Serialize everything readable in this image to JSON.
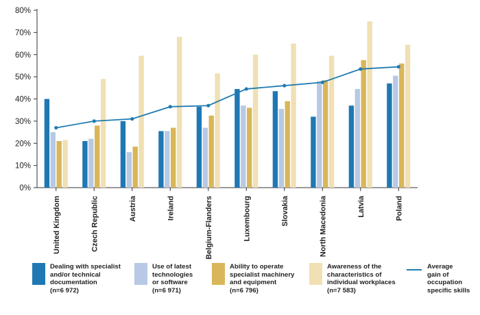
{
  "chart_data": {
    "type": "bar",
    "categories": [
      "United Kingdom",
      "Czech Republic",
      "Austria",
      "Ireland",
      "Belgium-Flanders",
      "Luxembourg",
      "Slovakia",
      "North Macedonia",
      "Latvia",
      "Poland"
    ],
    "ylim": [
      0,
      80
    ],
    "yticks": [
      "0%",
      "10%",
      "20%",
      "30%",
      "40%",
      "50%",
      "60%",
      "70%",
      "80%"
    ],
    "grid": false,
    "legend_position": "bottom",
    "series": [
      {
        "name": "Dealing with specialist\nand/or technical\ndocumentation\n(n=6 972)",
        "color": "#1f78b4",
        "values": [
          40,
          21,
          30,
          25.5,
          36.5,
          44.5,
          43.5,
          32,
          37,
          47
        ]
      },
      {
        "name": "Use of latest\ntechnologies\nor software\n(n=6 971)",
        "color": "#b7c9e4",
        "values": [
          25,
          22,
          16,
          25.5,
          27,
          37,
          35.5,
          48,
          44.5,
          50.5
        ]
      },
      {
        "name": "Ability to operate\nspecialist machinery\nand equipment\n(n=6 796)",
        "color": "#d9b65a",
        "values": [
          21,
          28,
          18.5,
          27,
          32.5,
          36,
          39,
          48.5,
          57.5,
          56
        ]
      },
      {
        "name": "Awareness of the\ncharacteristics of\nindividual workplaces\n(n=7 583)",
        "color": "#f0e0b4",
        "values": [
          21.5,
          49,
          59.5,
          68,
          51.5,
          60,
          65,
          59.5,
          75,
          64.5
        ]
      }
    ],
    "line_series": {
      "name": "Average\ngain of\noccupation\nspecific skills",
      "color": "#1f7bb0",
      "values": [
        27,
        30,
        31,
        36.5,
        37,
        44.5,
        46,
        47.5,
        53.5,
        54.5
      ]
    }
  }
}
